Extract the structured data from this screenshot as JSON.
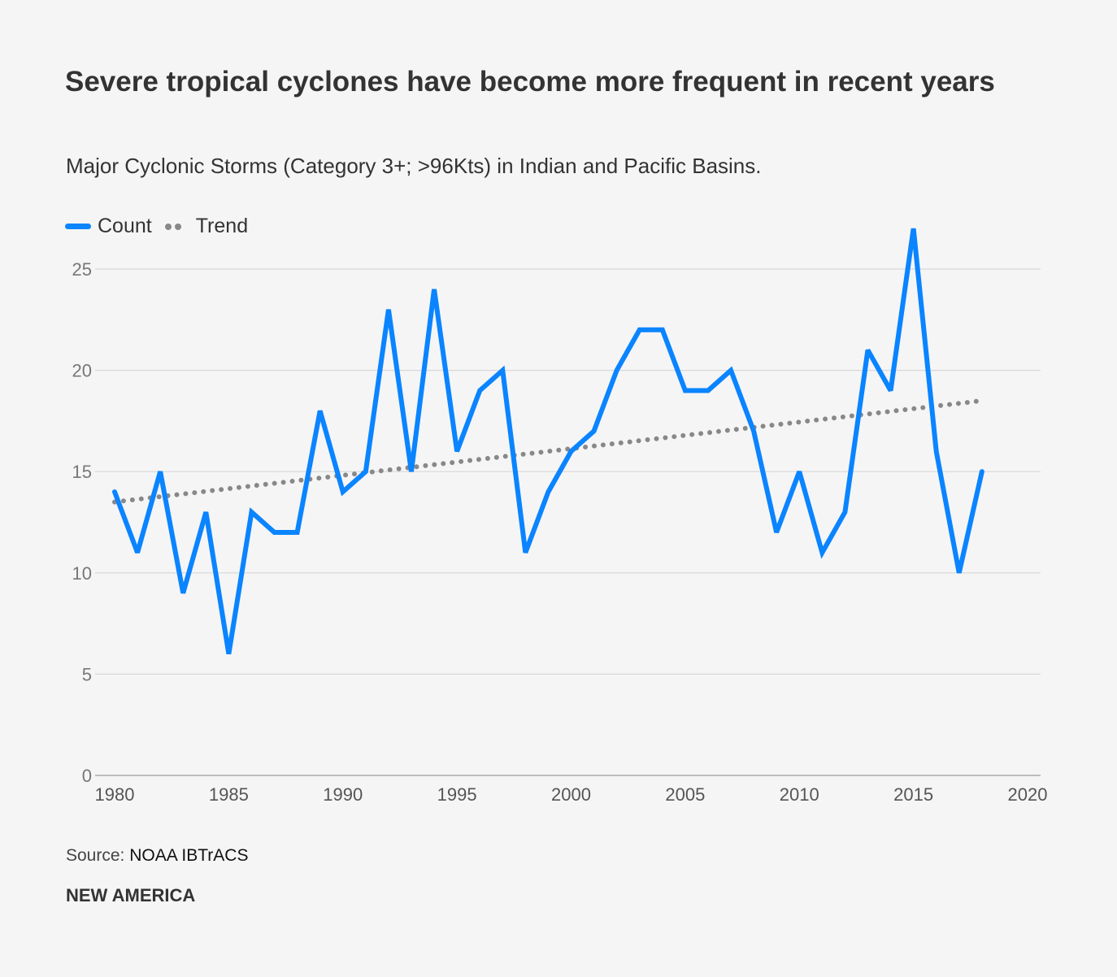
{
  "chart_data": {
    "type": "line",
    "title": "Severe tropical cyclones have become more frequent in recent years",
    "subtitle": "Major Cyclonic Storms (Category 3+; >96Kts) in Indian and Pacific Basins.",
    "xlabel": "",
    "ylabel": "",
    "xlim": [
      1980,
      2020
    ],
    "ylim": [
      0,
      27
    ],
    "xticks": [
      "1980",
      "1985",
      "1990",
      "1995",
      "2000",
      "2005",
      "2010",
      "2015",
      "2020"
    ],
    "yticks": [
      "0",
      "5",
      "10",
      "15",
      "20",
      "25"
    ],
    "grid": "horizontal",
    "legend": "top-left",
    "x": [
      1980,
      1981,
      1982,
      1983,
      1984,
      1985,
      1986,
      1987,
      1988,
      1989,
      1990,
      1991,
      1992,
      1993,
      1994,
      1995,
      1996,
      1997,
      1998,
      1999,
      2000,
      2001,
      2002,
      2003,
      2004,
      2005,
      2006,
      2007,
      2008,
      2009,
      2010,
      2011,
      2012,
      2013,
      2014,
      2015,
      2016,
      2017,
      2018
    ],
    "series": [
      {
        "name": "Count",
        "color": "#0a84ff",
        "style": "solid",
        "values": [
          14,
          11,
          15,
          9,
          13,
          6,
          13,
          12,
          12,
          18,
          14,
          15,
          23,
          15,
          24,
          16,
          19,
          20,
          11,
          14,
          16,
          17,
          20,
          22,
          22,
          19,
          19,
          20,
          17,
          12,
          15,
          11,
          13,
          21,
          19,
          27,
          16,
          10,
          15
        ]
      },
      {
        "name": "Trend",
        "color": "#888888",
        "style": "dotted",
        "x": [
          1980,
          2018
        ],
        "values": [
          13.5,
          18.5
        ]
      }
    ]
  },
  "footer": {
    "source_label": "Source:",
    "source": "NOAA IBTrACS",
    "brand": "NEW AMERICA"
  }
}
